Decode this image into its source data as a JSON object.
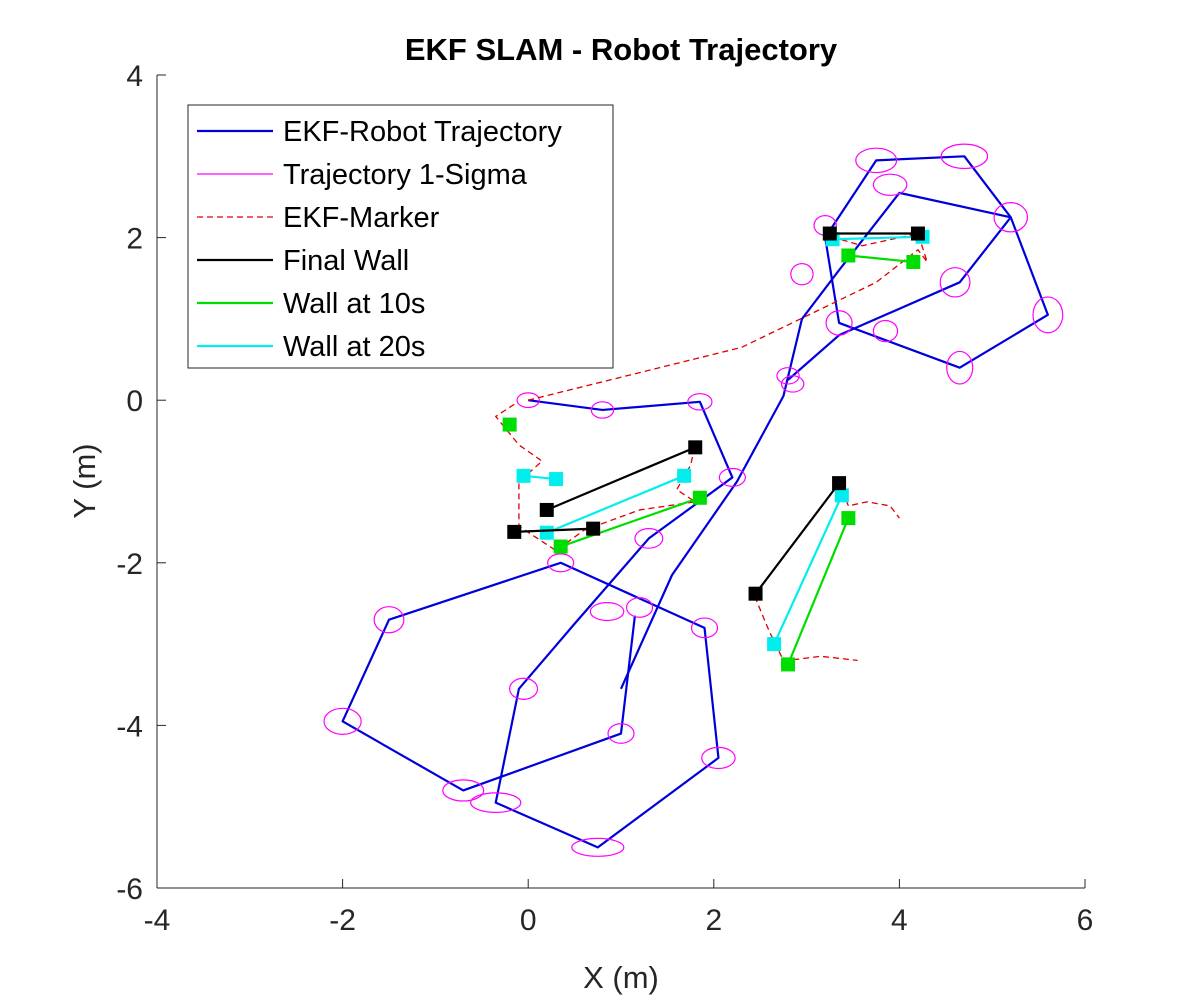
{
  "chart_data": {
    "type": "line",
    "title": "EKF SLAM - Robot Trajectory",
    "xlabel": "X (m)",
    "ylabel": "Y (m)",
    "xlim": [
      -4,
      6
    ],
    "ylim": [
      -6,
      4
    ],
    "xticks": [
      "-4",
      "-2",
      "0",
      "2",
      "4",
      "6"
    ],
    "yticks": [
      "-6",
      "-4",
      "-2",
      "0",
      "2",
      "4"
    ],
    "grid": false,
    "legend_placement": "top-left",
    "series": [
      {
        "name": "EKF-Robot Trajectory",
        "color": "#0000dd",
        "style": "solid",
        "points": [
          [
            0.0,
            0.0
          ],
          [
            0.8,
            -0.12
          ],
          [
            1.85,
            -0.02
          ],
          [
            2.2,
            -0.95
          ],
          [
            1.3,
            -1.7
          ],
          [
            0.5,
            -2.75
          ],
          [
            -0.1,
            -3.55
          ],
          [
            -0.35,
            -4.95
          ],
          [
            0.75,
            -5.5
          ],
          [
            2.05,
            -4.4
          ],
          [
            1.9,
            -2.8
          ],
          [
            0.35,
            -2.0
          ],
          [
            -1.5,
            -2.7
          ],
          [
            -2.0,
            -3.95
          ],
          [
            -0.7,
            -4.8
          ],
          [
            1.0,
            -4.1
          ],
          [
            1.15,
            -2.65
          ]
        ]
      },
      {
        "name": "EKF-Robot Trajectory",
        "color": "#0000dd",
        "style": "solid",
        "points": [
          [
            1.0,
            -3.55
          ],
          [
            1.55,
            -2.15
          ],
          [
            2.25,
            -1.0
          ],
          [
            2.75,
            0.05
          ],
          [
            2.95,
            1.0
          ],
          [
            3.35,
            1.6
          ],
          [
            4.0,
            2.55
          ],
          [
            5.2,
            2.25
          ],
          [
            5.6,
            1.05
          ],
          [
            4.65,
            0.4
          ],
          [
            3.35,
            0.95
          ],
          [
            3.2,
            2.0
          ],
          [
            3.75,
            2.95
          ],
          [
            4.7,
            3.0
          ],
          [
            5.2,
            2.25
          ],
          [
            4.65,
            1.45
          ],
          [
            3.35,
            0.8
          ],
          [
            2.8,
            0.25
          ]
        ]
      },
      {
        "name": "Trajectory 1-Sigma",
        "color": "#ff00ff",
        "ellipses": [
          [
            0.0,
            0.0,
            0.12,
            0.09
          ],
          [
            0.8,
            -0.12,
            0.12,
            0.1
          ],
          [
            1.85,
            -0.02,
            0.13,
            0.1
          ],
          [
            2.2,
            -0.95,
            0.14,
            0.11
          ],
          [
            1.3,
            -1.7,
            0.15,
            0.12
          ],
          [
            0.35,
            -2.0,
            0.14,
            0.11
          ],
          [
            -1.5,
            -2.7,
            0.16,
            0.16
          ],
          [
            -2.0,
            -3.95,
            0.2,
            0.16
          ],
          [
            -0.7,
            -4.8,
            0.22,
            0.13
          ],
          [
            -0.35,
            -4.95,
            0.27,
            0.12
          ],
          [
            0.75,
            -5.5,
            0.28,
            0.11
          ],
          [
            2.05,
            -4.4,
            0.18,
            0.13
          ],
          [
            1.9,
            -2.8,
            0.14,
            0.12
          ],
          [
            0.85,
            -2.6,
            0.18,
            0.11
          ],
          [
            1.2,
            -2.55,
            0.14,
            0.12
          ],
          [
            -0.05,
            -3.55,
            0.15,
            0.13
          ],
          [
            1.0,
            -4.1,
            0.14,
            0.12
          ],
          [
            2.8,
            0.3,
            0.12,
            0.1
          ],
          [
            2.85,
            0.2,
            0.12,
            0.1
          ],
          [
            2.95,
            1.55,
            0.12,
            0.13
          ],
          [
            3.2,
            2.15,
            0.12,
            0.12
          ],
          [
            3.35,
            0.95,
            0.14,
            0.15
          ],
          [
            3.85,
            0.85,
            0.13,
            0.13
          ],
          [
            3.75,
            2.95,
            0.22,
            0.15
          ],
          [
            3.9,
            2.65,
            0.18,
            0.13
          ],
          [
            4.7,
            3.0,
            0.25,
            0.15
          ],
          [
            5.2,
            2.25,
            0.18,
            0.18
          ],
          [
            5.6,
            1.05,
            0.16,
            0.22
          ],
          [
            4.65,
            0.4,
            0.14,
            0.2
          ],
          [
            4.6,
            1.45,
            0.16,
            0.18
          ]
        ]
      },
      {
        "name": "EKF-Marker",
        "color": "#dd0000",
        "style": "dashed",
        "points": [
          [
            0.0,
            0.0
          ],
          [
            2.3,
            0.65
          ],
          [
            3.75,
            1.45
          ],
          [
            4.2,
            1.85
          ],
          [
            4.3,
            1.7
          ],
          [
            4.2,
            2.05
          ],
          [
            3.6,
            1.9
          ],
          [
            3.3,
            2.0
          ],
          [
            3.3,
            2.1
          ]
        ]
      },
      {
        "name": "EKF-Marker",
        "color": "#dd0000",
        "style": "dashed",
        "points": [
          [
            -0.15,
            -0.05
          ],
          [
            -0.35,
            -0.2
          ],
          [
            -0.1,
            -0.55
          ],
          [
            0.15,
            -0.75
          ],
          [
            -0.1,
            -1.0
          ],
          [
            -0.1,
            -1.55
          ],
          [
            0.3,
            -1.85
          ],
          [
            0.6,
            -1.6
          ],
          [
            1.2,
            -1.35
          ],
          [
            1.8,
            -1.25
          ],
          [
            1.6,
            -1.1
          ],
          [
            1.75,
            -0.8
          ],
          [
            1.8,
            -0.55
          ]
        ]
      },
      {
        "name": "EKF-Marker",
        "color": "#dd0000",
        "style": "dashed",
        "points": [
          [
            2.4,
            -2.3
          ],
          [
            2.6,
            -2.85
          ],
          [
            2.75,
            -3.2
          ],
          [
            2.8,
            -3.2
          ],
          [
            3.15,
            -3.15
          ],
          [
            3.55,
            -3.2
          ]
        ]
      },
      {
        "name": "EKF-Marker",
        "color": "#dd0000",
        "style": "dashed",
        "points": [
          [
            3.35,
            -1.0
          ],
          [
            3.45,
            -1.3
          ],
          [
            3.65,
            -1.25
          ],
          [
            3.9,
            -1.3
          ],
          [
            4.0,
            -1.45
          ]
        ]
      },
      {
        "name": "Final Wall",
        "color": "#000000",
        "walls": [
          [
            [
              3.25,
              2.05
            ],
            [
              4.2,
              2.05
            ]
          ],
          [
            [
              0.2,
              -1.35
            ],
            [
              1.8,
              -0.58
            ]
          ],
          [
            [
              -0.15,
              -1.62
            ],
            [
              0.7,
              -1.58
            ]
          ],
          [
            [
              2.45,
              -2.38
            ],
            [
              3.35,
              -1.02
            ]
          ]
        ]
      },
      {
        "name": "Wall at 10s",
        "color": "#00dd00",
        "walls": [
          [
            [
              3.45,
              1.78
            ],
            [
              4.15,
              1.7
            ]
          ],
          [
            [
              0.35,
              -1.8
            ],
            [
              1.85,
              -1.2
            ]
          ],
          [
            [
              2.8,
              -3.25
            ],
            [
              3.45,
              -1.45
            ]
          ]
        ],
        "points": [
          [
            -0.2,
            -0.3
          ]
        ]
      },
      {
        "name": "Wall at 20s",
        "color": "#00eeee",
        "walls": [
          [
            [
              3.28,
              1.98
            ],
            [
              4.25,
              2.01
            ]
          ],
          [
            [
              -0.05,
              -0.93
            ],
            [
              0.3,
              -0.97
            ]
          ],
          [
            [
              0.2,
              -1.63
            ],
            [
              1.68,
              -0.93
            ]
          ],
          [
            [
              2.65,
              -3.0
            ],
            [
              3.38,
              -1.17
            ]
          ]
        ]
      }
    ],
    "legend": [
      {
        "label": "EKF-Robot Trajectory",
        "color": "#0000dd",
        "style": "solid"
      },
      {
        "label": "Trajectory 1-Sigma",
        "color": "#ff00ff",
        "style": "thin"
      },
      {
        "label": "EKF-Marker",
        "color": "#dd0000",
        "style": "dashed"
      },
      {
        "label": "Final Wall",
        "color": "#000000",
        "style": "solid"
      },
      {
        "label": "Wall at 10s",
        "color": "#00dd00",
        "style": "solid"
      },
      {
        "label": "Wall at 20s",
        "color": "#00eeee",
        "style": "solid"
      }
    ]
  }
}
